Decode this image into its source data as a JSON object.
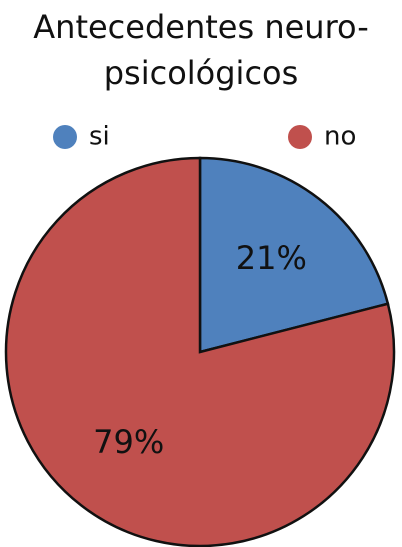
{
  "chart_data": {
    "type": "pie",
    "title": "Antecedentes neuro-psicológicos",
    "categories": [
      "si",
      "no"
    ],
    "values": [
      21,
      79
    ],
    "value_labels": [
      "21%",
      "79%"
    ],
    "colors": [
      "#4f81bd",
      "#c0504d"
    ],
    "legend": "top"
  }
}
